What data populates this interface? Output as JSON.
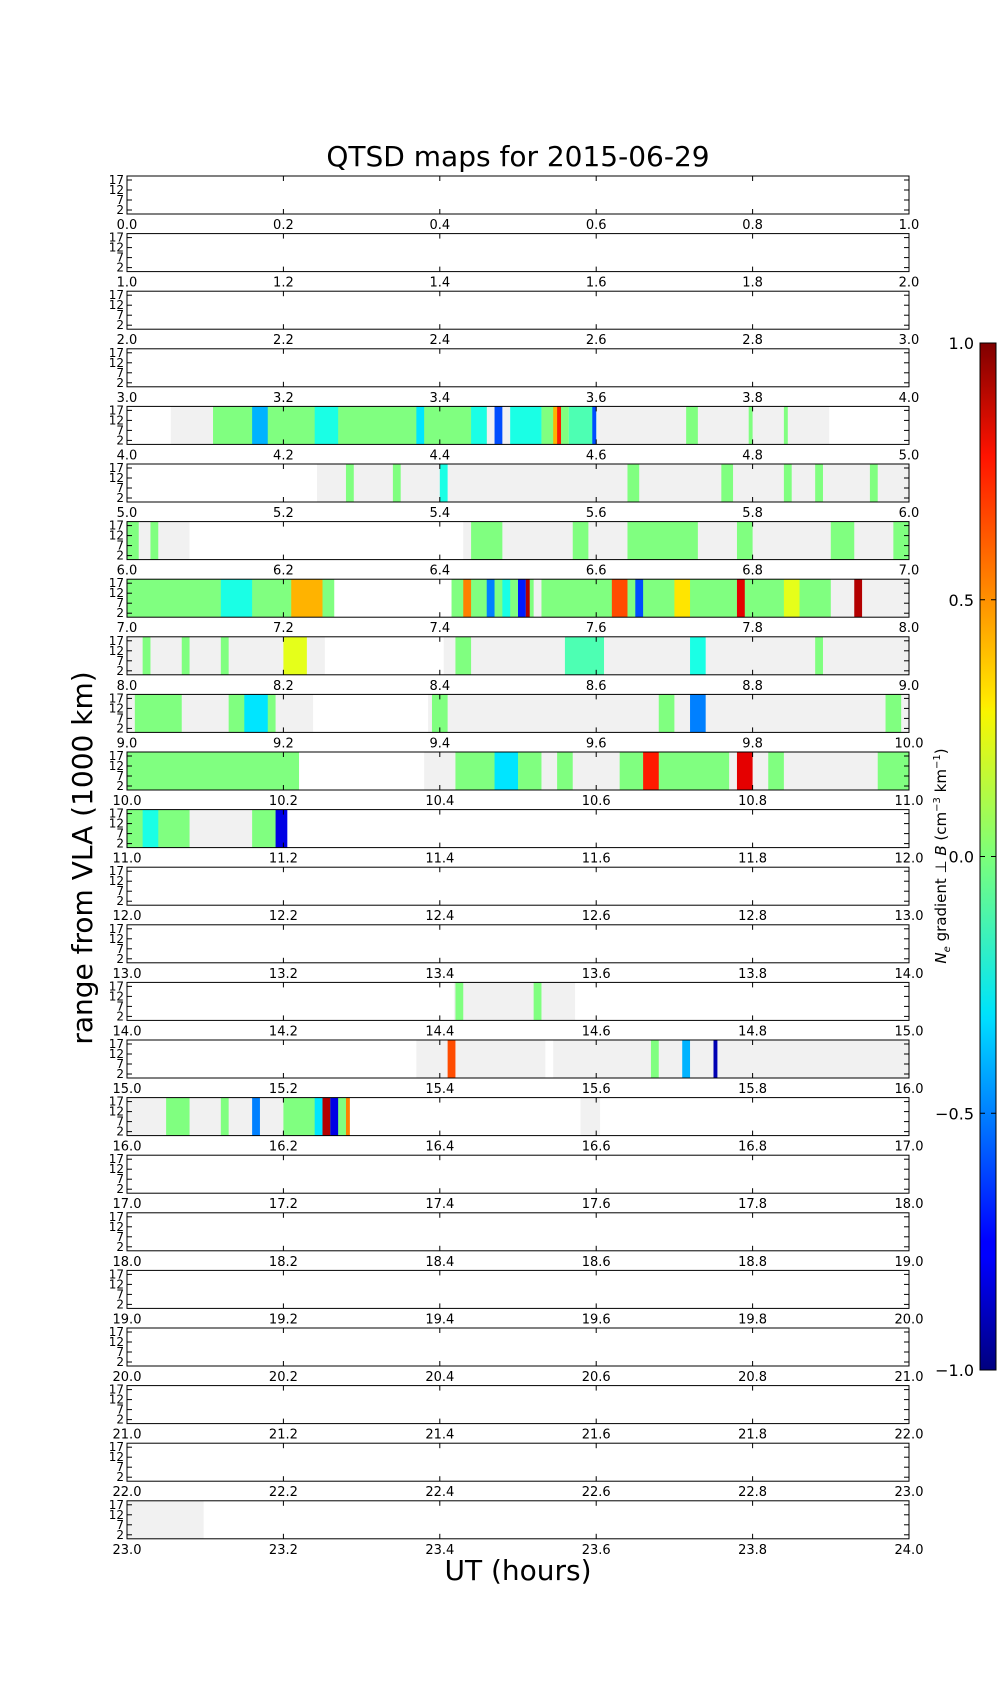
{
  "chart_data": {
    "type": "heatmap",
    "title": "QTSD maps for 2015-06-29",
    "xlabel": "UT (hours)",
    "ylabel": "range from VLA (1000 km)",
    "ytick_labels": [
      "17",
      "12",
      "7",
      "2"
    ],
    "colorbar": {
      "label": "N_e gradient ⊥ B (cm⁻³ km⁻¹)",
      "label_parts": [
        "N",
        "e",
        " gradient ⊥ ",
        "B",
        " (cm",
        "−3",
        " km",
        "−1",
        ")"
      ],
      "ticks": [
        "1.0",
        "0.5",
        "0.0",
        "−0.5",
        "−1.0"
      ],
      "range": [
        -1.0,
        1.0
      ],
      "colormap": "jet"
    },
    "panels": [
      {
        "start": 0,
        "tick_labels": [
          "0.0",
          "0.2",
          "0.4",
          "0.6",
          "0.8",
          "1.0"
        ],
        "coverage": [],
        "features": []
      },
      {
        "start": 1,
        "tick_labels": [
          "1.0",
          "1.2",
          "1.4",
          "1.6",
          "1.8",
          "2.0"
        ],
        "coverage": [],
        "features": []
      },
      {
        "start": 2,
        "tick_labels": [
          "2.0",
          "2.2",
          "2.4",
          "2.6",
          "2.8",
          "3.0"
        ],
        "coverage": [],
        "features": []
      },
      {
        "start": 3,
        "tick_labels": [
          "3.0",
          "3.2",
          "3.4",
          "3.6",
          "3.8",
          "4.0"
        ],
        "coverage": [],
        "features": []
      },
      {
        "start": 4,
        "tick_labels": [
          "4.0",
          "4.2",
          "4.4",
          "4.6",
          "4.8",
          "5.0"
        ],
        "coverage": [
          [
            4.056,
            4.898
          ]
        ],
        "features": [
          [
            4.11,
            4.46,
            0.0
          ],
          [
            4.16,
            4.18,
            -0.4
          ],
          [
            4.24,
            4.27,
            -0.2
          ],
          [
            4.3,
            4.36,
            0.0
          ],
          [
            4.37,
            4.38,
            -0.3
          ],
          [
            4.44,
            4.46,
            -0.2
          ],
          [
            4.47,
            4.48,
            -0.6
          ],
          [
            4.49,
            4.53,
            -0.2
          ],
          [
            4.53,
            4.565,
            0.0
          ],
          [
            4.545,
            4.55,
            0.4
          ],
          [
            4.55,
            4.555,
            0.7
          ],
          [
            4.565,
            4.6,
            -0.1
          ],
          [
            4.595,
            4.6,
            -0.6
          ],
          [
            4.715,
            4.73,
            0.0
          ],
          [
            4.795,
            4.8,
            0.0
          ],
          [
            4.84,
            4.845,
            0.0
          ]
        ]
      },
      {
        "start": 5,
        "tick_labels": [
          "5.0",
          "5.2",
          "5.4",
          "5.6",
          "5.8",
          "6.0"
        ],
        "coverage": [
          [
            5.243,
            6.0
          ]
        ],
        "features": [
          [
            5.28,
            5.29,
            0.0
          ],
          [
            5.34,
            5.35,
            0.0
          ],
          [
            5.4,
            5.41,
            -0.2
          ],
          [
            5.64,
            5.655,
            0.0
          ],
          [
            5.76,
            5.775,
            0.0
          ],
          [
            5.84,
            5.85,
            0.0
          ],
          [
            5.88,
            5.89,
            0.0
          ],
          [
            5.95,
            5.96,
            0.0
          ]
        ]
      },
      {
        "start": 6,
        "tick_labels": [
          "6.0",
          "6.2",
          "6.4",
          "6.6",
          "6.8",
          "7.0"
        ],
        "coverage": [
          [
            6.0,
            6.08
          ],
          [
            6.43,
            7.0
          ]
        ],
        "features": [
          [
            6.0,
            6.015,
            0.0
          ],
          [
            6.03,
            6.04,
            0.0
          ],
          [
            6.44,
            6.48,
            0.0
          ],
          [
            6.57,
            6.59,
            0.0
          ],
          [
            6.64,
            6.73,
            0.0
          ],
          [
            6.78,
            6.8,
            0.0
          ],
          [
            6.9,
            6.93,
            0.0
          ],
          [
            6.98,
            7.0,
            0.0
          ]
        ]
      },
      {
        "start": 7,
        "tick_labels": [
          "7.0",
          "7.2",
          "7.4",
          "7.6",
          "7.8",
          "8.0"
        ],
        "coverage": [
          [
            7.0,
            7.265
          ],
          [
            7.415,
            8.0
          ]
        ],
        "features": [
          [
            7.0,
            7.265,
            0.0
          ],
          [
            7.12,
            7.16,
            -0.2
          ],
          [
            7.21,
            7.25,
            0.4
          ],
          [
            7.415,
            7.52,
            0.0
          ],
          [
            7.43,
            7.44,
            0.5
          ],
          [
            7.46,
            7.47,
            -0.5
          ],
          [
            7.48,
            7.49,
            -0.2
          ],
          [
            7.5,
            7.51,
            -0.7
          ],
          [
            7.51,
            7.515,
            0.9
          ],
          [
            7.53,
            7.9,
            0.0
          ],
          [
            7.62,
            7.64,
            0.6
          ],
          [
            7.65,
            7.66,
            -0.6
          ],
          [
            7.7,
            7.72,
            0.3
          ],
          [
            7.78,
            7.79,
            0.8
          ],
          [
            7.84,
            7.86,
            0.2
          ],
          [
            7.93,
            7.94,
            0.9
          ]
        ]
      },
      {
        "start": 8,
        "tick_labels": [
          "8.0",
          "8.2",
          "8.4",
          "8.6",
          "8.8",
          "9.0"
        ],
        "coverage": [
          [
            8.0,
            8.253
          ],
          [
            8.405,
            9.0
          ]
        ],
        "features": [
          [
            8.02,
            8.03,
            0.0
          ],
          [
            8.07,
            8.08,
            0.0
          ],
          [
            8.12,
            8.13,
            0.0
          ],
          [
            8.2,
            8.23,
            0.2
          ],
          [
            8.42,
            8.44,
            0.0
          ],
          [
            8.56,
            8.61,
            -0.1
          ],
          [
            8.72,
            8.74,
            -0.2
          ],
          [
            8.88,
            8.89,
            0.0
          ]
        ]
      },
      {
        "start": 9,
        "tick_labels": [
          "9.0",
          "9.2",
          "9.4",
          "9.6",
          "9.8",
          "10.0"
        ],
        "coverage": [
          [
            9.0,
            9.238
          ],
          [
            9.385,
            10.0
          ]
        ],
        "features": [
          [
            9.01,
            9.07,
            0.0
          ],
          [
            9.13,
            9.19,
            0.0
          ],
          [
            9.15,
            9.18,
            -0.3
          ],
          [
            9.39,
            9.41,
            0.0
          ],
          [
            9.68,
            9.7,
            0.0
          ],
          [
            9.72,
            9.74,
            -0.5
          ],
          [
            9.97,
            9.99,
            0.0
          ]
        ]
      },
      {
        "start": 10,
        "tick_labels": [
          "10.0",
          "10.2",
          "10.4",
          "10.6",
          "10.8",
          "11.0"
        ],
        "coverage": [
          [
            10.0,
            10.22
          ],
          [
            10.38,
            11.0
          ]
        ],
        "features": [
          [
            10.0,
            10.22,
            0.0
          ],
          [
            10.42,
            10.53,
            0.0
          ],
          [
            10.47,
            10.5,
            -0.3
          ],
          [
            10.55,
            10.57,
            0.0
          ],
          [
            10.63,
            10.77,
            0.0
          ],
          [
            10.66,
            10.68,
            0.7
          ],
          [
            10.78,
            10.8,
            0.8
          ],
          [
            10.82,
            10.84,
            0.0
          ],
          [
            10.96,
            11.0,
            0.0
          ]
        ]
      },
      {
        "start": 11,
        "tick_labels": [
          "11.0",
          "11.2",
          "11.4",
          "11.6",
          "11.8",
          "12.0"
        ],
        "coverage": [
          [
            11.0,
            11.205
          ]
        ],
        "features": [
          [
            11.0,
            11.08,
            0.0
          ],
          [
            11.02,
            11.04,
            -0.2
          ],
          [
            11.16,
            11.2,
            0.0
          ],
          [
            11.19,
            11.205,
            -0.8
          ]
        ]
      },
      {
        "start": 12,
        "tick_labels": [
          "12.0",
          "12.2",
          "12.4",
          "12.6",
          "12.8",
          "13.0"
        ],
        "coverage": [],
        "features": []
      },
      {
        "start": 13,
        "tick_labels": [
          "13.0",
          "13.2",
          "13.4",
          "13.6",
          "13.8",
          "14.0"
        ],
        "coverage": [],
        "features": []
      },
      {
        "start": 14,
        "tick_labels": [
          "14.0",
          "14.2",
          "14.4",
          "14.6",
          "14.8",
          "15.0"
        ],
        "coverage": [
          [
            14.418,
            14.573
          ]
        ],
        "features": [
          [
            14.42,
            14.43,
            0.0
          ],
          [
            14.52,
            14.53,
            0.0
          ]
        ]
      },
      {
        "start": 15,
        "tick_labels": [
          "15.0",
          "15.2",
          "15.4",
          "15.6",
          "15.8",
          "16.0"
        ],
        "coverage": [
          [
            15.37,
            15.535
          ],
          [
            15.545,
            16.0
          ]
        ],
        "features": [
          [
            15.41,
            15.42,
            0.6
          ],
          [
            15.67,
            15.68,
            0.0
          ],
          [
            15.71,
            15.72,
            -0.4
          ],
          [
            15.75,
            15.755,
            -0.9
          ]
        ]
      },
      {
        "start": 16,
        "tick_labels": [
          "16.0",
          "16.2",
          "16.4",
          "16.6",
          "16.8",
          "17.0"
        ],
        "coverage": [
          [
            16.0,
            16.285
          ],
          [
            16.58,
            16.605
          ]
        ],
        "features": [
          [
            16.05,
            16.08,
            0.0
          ],
          [
            16.12,
            16.13,
            0.0
          ],
          [
            16.16,
            16.17,
            -0.5
          ],
          [
            16.2,
            16.28,
            0.0
          ],
          [
            16.24,
            16.25,
            -0.3
          ],
          [
            16.25,
            16.26,
            0.9
          ],
          [
            16.26,
            16.27,
            -0.8
          ],
          [
            16.28,
            16.285,
            0.5
          ]
        ]
      },
      {
        "start": 17,
        "tick_labels": [
          "17.0",
          "17.2",
          "17.4",
          "17.6",
          "17.8",
          "18.0"
        ],
        "coverage": [],
        "features": []
      },
      {
        "start": 18,
        "tick_labels": [
          "18.0",
          "18.2",
          "18.4",
          "18.6",
          "18.8",
          "19.0"
        ],
        "coverage": [],
        "features": []
      },
      {
        "start": 19,
        "tick_labels": [
          "19.0",
          "19.2",
          "19.4",
          "19.6",
          "19.8",
          "20.0"
        ],
        "coverage": [],
        "features": []
      },
      {
        "start": 20,
        "tick_labels": [
          "20.0",
          "20.2",
          "20.4",
          "20.6",
          "20.8",
          "21.0"
        ],
        "coverage": [],
        "features": []
      },
      {
        "start": 21,
        "tick_labels": [
          "21.0",
          "21.2",
          "21.4",
          "21.6",
          "21.8",
          "22.0"
        ],
        "coverage": [],
        "features": []
      },
      {
        "start": 22,
        "tick_labels": [
          "22.0",
          "22.2",
          "22.4",
          "22.6",
          "22.8",
          "23.0"
        ],
        "coverage": [],
        "features": []
      },
      {
        "start": 23,
        "tick_labels": [
          "23.0",
          "23.2",
          "23.4",
          "23.6",
          "23.8",
          "24.0"
        ],
        "coverage": [
          [
            23.0,
            23.098
          ]
        ],
        "features": []
      }
    ]
  }
}
